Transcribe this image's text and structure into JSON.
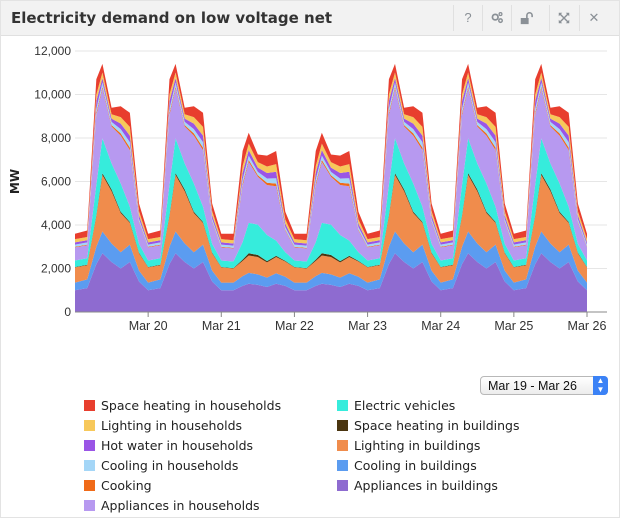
{
  "title": "Electricity demand on low voltage net",
  "toolbar": {
    "help_label": "?",
    "settings_icon": "gear-icon",
    "lock_icon": "unlock-icon",
    "expand_icon": "expand-icon",
    "close_label": "✕"
  },
  "date_range": {
    "selected": "Mar 19 - Mar 26"
  },
  "chart_data": {
    "type": "area",
    "stacked": true,
    "ylabel": "MW",
    "xlabel": "",
    "ylim": [
      0,
      12000
    ],
    "yticks": [
      0,
      2000,
      4000,
      6000,
      8000,
      10000,
      12000
    ],
    "ytick_labels": [
      "0",
      "2,000",
      "4,000",
      "6,000",
      "8,000",
      "10,000",
      "12,000"
    ],
    "xlim": [
      0,
      168
    ],
    "x_unit": "hours since Mar 19 00:00",
    "xticks": [
      24,
      48,
      72,
      96,
      120,
      144,
      168
    ],
    "xtick_labels": [
      "Mar 20",
      "Mar 21",
      "Mar 22",
      "Mar 23",
      "Mar 24",
      "Mar 25",
      "Mar 26"
    ],
    "grid": "horizontal",
    "legend_placement": "bottom",
    "x": [
      0,
      4,
      7,
      9,
      12,
      15,
      18,
      21,
      24,
      28,
      31,
      33,
      36,
      39,
      42,
      45,
      48,
      52,
      55,
      57,
      60,
      63,
      66,
      69,
      72,
      76,
      79,
      81,
      84,
      87,
      90,
      93,
      96,
      100,
      103,
      105,
      108,
      111,
      114,
      117,
      120,
      124,
      127,
      129,
      132,
      135,
      138,
      141,
      144,
      148,
      151,
      153,
      156,
      159,
      162,
      165,
      168
    ],
    "series": [
      {
        "name": "Appliances in buildings",
        "color": "#8e6bd0",
        "values": [
          1000,
          1100,
          2200,
          2700,
          2300,
          2000,
          2300,
          1400,
          1000,
          1100,
          2200,
          2700,
          2300,
          2000,
          2300,
          1400,
          1000,
          1000,
          1200,
          1300,
          1250,
          1150,
          1300,
          1200,
          1000,
          1000,
          1200,
          1300,
          1250,
          1150,
          1300,
          1200,
          1000,
          1100,
          2200,
          2700,
          2300,
          2000,
          2300,
          1400,
          1000,
          1100,
          2200,
          2700,
          2300,
          2000,
          2300,
          1400,
          1000,
          1100,
          2200,
          2700,
          2300,
          2000,
          2300,
          1400,
          1000
        ]
      },
      {
        "name": "Cooling in buildings",
        "color": "#5b9cf0",
        "values": [
          350,
          400,
          800,
          1000,
          850,
          750,
          800,
          500,
          350,
          400,
          800,
          1000,
          850,
          750,
          800,
          500,
          350,
          350,
          450,
          500,
          480,
          430,
          480,
          420,
          350,
          350,
          450,
          500,
          480,
          430,
          480,
          420,
          350,
          400,
          800,
          1000,
          850,
          750,
          800,
          500,
          350,
          400,
          800,
          1000,
          850,
          750,
          800,
          500,
          350,
          400,
          800,
          1000,
          850,
          750,
          800,
          500,
          350
        ]
      },
      {
        "name": "Lighting in buildings",
        "color": "#f08c4c",
        "values": [
          700,
          650,
          1400,
          2600,
          2400,
          1800,
          1000,
          800,
          700,
          650,
          1400,
          2600,
          2400,
          1800,
          1000,
          800,
          700,
          650,
          700,
          800,
          800,
          700,
          750,
          700,
          700,
          650,
          700,
          800,
          800,
          700,
          750,
          700,
          700,
          650,
          1400,
          2600,
          2400,
          1800,
          1000,
          800,
          700,
          650,
          1400,
          2600,
          2400,
          1800,
          1000,
          800,
          700,
          650,
          1400,
          2600,
          2400,
          1800,
          1000,
          800,
          700
        ]
      },
      {
        "name": "Space heating in buildings",
        "color": "#4a3510",
        "values": [
          20,
          20,
          50,
          80,
          80,
          60,
          40,
          30,
          20,
          20,
          50,
          80,
          80,
          60,
          40,
          30,
          20,
          20,
          60,
          100,
          90,
          60,
          50,
          30,
          20,
          20,
          60,
          100,
          90,
          60,
          50,
          30,
          20,
          20,
          50,
          80,
          80,
          60,
          40,
          30,
          20,
          20,
          50,
          80,
          80,
          60,
          40,
          30,
          20,
          20,
          50,
          80,
          80,
          60,
          40,
          30,
          20
        ]
      },
      {
        "name": "Electric vehicles",
        "color": "#36ecdc",
        "values": [
          300,
          300,
          1400,
          1600,
          1200,
          1300,
          700,
          400,
          300,
          300,
          1400,
          1600,
          1200,
          1300,
          700,
          400,
          300,
          300,
          800,
          1400,
          1400,
          1200,
          700,
          400,
          300,
          300,
          800,
          1400,
          1400,
          1200,
          700,
          400,
          300,
          300,
          1400,
          1600,
          1200,
          1300,
          700,
          400,
          300,
          300,
          1400,
          1600,
          1200,
          1300,
          700,
          400,
          300,
          300,
          1400,
          1600,
          1200,
          1300,
          700,
          400,
          300
        ]
      },
      {
        "name": "Appliances in households",
        "color": "#b799f0",
        "values": [
          600,
          600,
          3200,
          2300,
          1700,
          2200,
          2600,
          1000,
          600,
          600,
          3200,
          2300,
          1700,
          2200,
          2600,
          1000,
          600,
          600,
          2600,
          2800,
          2200,
          2300,
          2500,
          1000,
          600,
          600,
          2600,
          2800,
          2200,
          2300,
          2500,
          1000,
          600,
          600,
          3200,
          2300,
          1700,
          2200,
          2600,
          1000,
          600,
          600,
          3200,
          2300,
          1700,
          2200,
          2600,
          1000,
          600,
          600,
          3200,
          2300,
          1700,
          2200,
          2600,
          1000,
          600
        ]
      },
      {
        "name": "Cooking",
        "color": "#f06a18",
        "values": [
          30,
          30,
          100,
          80,
          60,
          100,
          120,
          40,
          30,
          30,
          100,
          80,
          60,
          100,
          120,
          40,
          30,
          30,
          100,
          90,
          70,
          100,
          120,
          40,
          30,
          30,
          100,
          90,
          70,
          100,
          120,
          40,
          30,
          30,
          100,
          80,
          60,
          100,
          120,
          40,
          30,
          30,
          100,
          80,
          60,
          100,
          120,
          40,
          30,
          30,
          100,
          80,
          60,
          100,
          120,
          40,
          30
        ]
      },
      {
        "name": "Cooling in households",
        "color": "#a4d6f7",
        "values": [
          100,
          100,
          200,
          200,
          150,
          200,
          250,
          120,
          100,
          100,
          200,
          200,
          150,
          200,
          250,
          120,
          100,
          100,
          200,
          200,
          150,
          200,
          250,
          120,
          100,
          100,
          200,
          200,
          150,
          200,
          250,
          120,
          100,
          100,
          200,
          200,
          150,
          200,
          250,
          120,
          100,
          100,
          200,
          200,
          150,
          200,
          250,
          120,
          100,
          100,
          200,
          200,
          150,
          200,
          250,
          120,
          100
        ]
      },
      {
        "name": "Hot water in households",
        "color": "#9a55e6",
        "values": [
          100,
          100,
          350,
          200,
          150,
          250,
          300,
          150,
          100,
          100,
          350,
          200,
          150,
          250,
          300,
          150,
          100,
          100,
          300,
          250,
          200,
          250,
          300,
          150,
          100,
          100,
          300,
          250,
          200,
          250,
          300,
          150,
          100,
          100,
          350,
          200,
          150,
          250,
          300,
          150,
          100,
          100,
          350,
          200,
          150,
          250,
          300,
          150,
          100,
          100,
          350,
          200,
          150,
          250,
          300,
          150,
          100
        ]
      },
      {
        "name": "Lighting in households",
        "color": "#f7c85a",
        "values": [
          150,
          150,
          300,
          250,
          200,
          300,
          400,
          200,
          150,
          150,
          300,
          250,
          200,
          300,
          400,
          200,
          150,
          150,
          300,
          300,
          250,
          300,
          350,
          200,
          150,
          150,
          300,
          300,
          250,
          300,
          350,
          200,
          150,
          150,
          300,
          250,
          200,
          300,
          400,
          200,
          150,
          150,
          300,
          250,
          200,
          300,
          400,
          200,
          150,
          150,
          300,
          250,
          200,
          300,
          400,
          200,
          150
        ]
      },
      {
        "name": "Space heating in households",
        "color": "#e83e2e",
        "values": [
          250,
          300,
          700,
          400,
          300,
          500,
          650,
          350,
          250,
          300,
          700,
          400,
          300,
          500,
          650,
          350,
          250,
          300,
          700,
          500,
          350,
          500,
          600,
          350,
          250,
          300,
          700,
          500,
          350,
          500,
          600,
          350,
          250,
          300,
          700,
          400,
          300,
          500,
          650,
          350,
          250,
          300,
          700,
          400,
          300,
          500,
          650,
          350,
          250,
          300,
          700,
          400,
          300,
          500,
          650,
          350,
          250
        ]
      }
    ]
  },
  "legend": [
    {
      "label": "Space heating in households",
      "color": "#e83e2e"
    },
    {
      "label": "Electric vehicles",
      "color": "#36ecdc"
    },
    {
      "label": "Lighting in households",
      "color": "#f7c85a"
    },
    {
      "label": "Space heating in buildings",
      "color": "#4a3510"
    },
    {
      "label": "Hot water in households",
      "color": "#9a55e6"
    },
    {
      "label": "Lighting in buildings",
      "color": "#f08c4c"
    },
    {
      "label": "Cooling in households",
      "color": "#a4d6f7"
    },
    {
      "label": "Cooling in buildings",
      "color": "#5b9cf0"
    },
    {
      "label": "Cooking",
      "color": "#f06a18"
    },
    {
      "label": "Appliances in buildings",
      "color": "#8e6bd0"
    },
    {
      "label": "Appliances in households",
      "color": "#b799f0"
    }
  ]
}
